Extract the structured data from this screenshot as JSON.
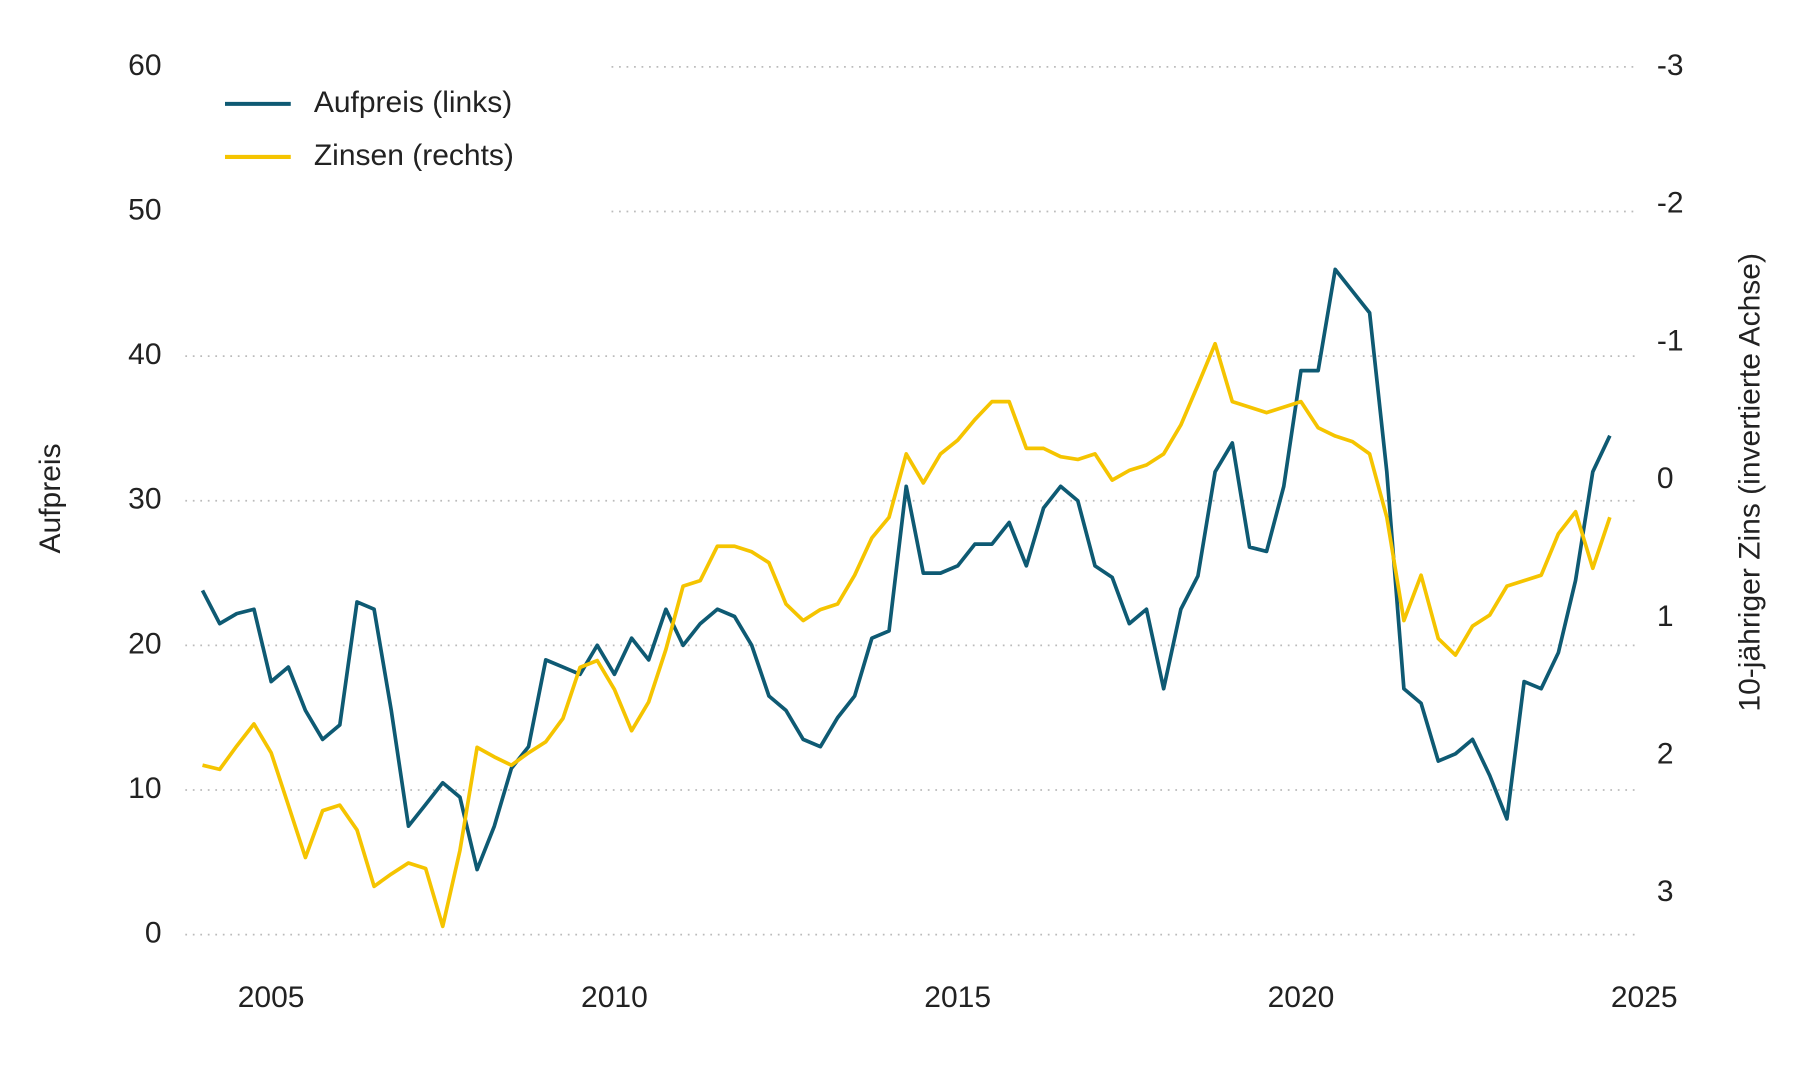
{
  "chart_data": {
    "type": "line",
    "ylabel": "Aufpreis",
    "y2label": "10-jähriger Zins (invertierte Achse)",
    "xlim": [
      2003.75,
      2025
    ],
    "xticks": [
      2005,
      2010,
      2015,
      2020,
      2025
    ],
    "ylim": [
      0,
      60
    ],
    "yticks": [
      0,
      10,
      20,
      30,
      40,
      50,
      60
    ],
    "y2lim": [
      3.3,
      -3
    ],
    "y2ticks": [
      3,
      2,
      1,
      0,
      -1,
      -2,
      -3
    ],
    "grid": true,
    "legend": "upper left",
    "x": [
      2004.0,
      2004.25,
      2004.5,
      2004.75,
      2005.0,
      2005.25,
      2005.5,
      2005.75,
      2006.0,
      2006.25,
      2006.5,
      2006.75,
      2007.0,
      2007.25,
      2007.5,
      2007.75,
      2008.0,
      2008.25,
      2008.5,
      2008.75,
      2009.0,
      2009.25,
      2009.5,
      2009.75,
      2010.0,
      2010.25,
      2010.5,
      2010.75,
      2011.0,
      2011.25,
      2011.5,
      2011.75,
      2012.0,
      2012.25,
      2012.5,
      2012.75,
      2013.0,
      2013.25,
      2013.5,
      2013.75,
      2014.0,
      2014.25,
      2014.5,
      2014.75,
      2015.0,
      2015.25,
      2015.5,
      2015.75,
      2016.0,
      2016.25,
      2016.5,
      2016.75,
      2017.0,
      2017.25,
      2017.5,
      2017.75,
      2018.0,
      2018.25,
      2018.5,
      2018.75,
      2019.0,
      2019.25,
      2019.5,
      2019.75,
      2020.0,
      2020.25,
      2020.5,
      2020.75,
      2021.0,
      2021.25,
      2021.5,
      2021.75,
      2022.0,
      2022.25,
      2022.5,
      2022.75,
      2023.0,
      2023.25,
      2023.5,
      2023.75,
      2024.0,
      2024.25,
      2024.5
    ],
    "series": [
      {
        "name": "Aufpreis (links)",
        "color": "#0e5a73",
        "axis": "y",
        "values": [
          23.8,
          21.5,
          22.2,
          22.5,
          17.5,
          18.5,
          15.5,
          13.5,
          14.5,
          23,
          22.5,
          15.5,
          7.5,
          9,
          10.5,
          9.5,
          4.5,
          7.5,
          11.5,
          13,
          19,
          18.5,
          18,
          20,
          18,
          20.5,
          19,
          22.5,
          20,
          21.5,
          22.5,
          22,
          20,
          16.5,
          15.5,
          13.5,
          13,
          15,
          16.5,
          20.5,
          21,
          31,
          25,
          25,
          25.5,
          27,
          27,
          28.5,
          25.5,
          29.5,
          31,
          30,
          25.5,
          24.7,
          21.5,
          22.5,
          17,
          22.5,
          24.8,
          32,
          34,
          26.8,
          26.5,
          31,
          39,
          39,
          46,
          44.5,
          43,
          32,
          17,
          16,
          12,
          12.5,
          13.5,
          11,
          8,
          17.5,
          17,
          19.5,
          24.5,
          32,
          34.5
        ]
      },
      {
        "name": "Zinsen (rechts)",
        "color": "#f5c400",
        "axis": "y2",
        "values": [
          2.07,
          2.1,
          1.93,
          1.77,
          1.98,
          2.36,
          2.74,
          2.4,
          2.36,
          2.54,
          2.95,
          2.86,
          2.78,
          2.82,
          3.24,
          2.69,
          1.94,
          2.01,
          2.07,
          1.98,
          1.9,
          1.73,
          1.36,
          1.31,
          1.52,
          1.82,
          1.61,
          1.23,
          0.77,
          0.73,
          0.48,
          0.48,
          0.52,
          0.6,
          0.9,
          1.02,
          0.94,
          0.9,
          0.69,
          0.42,
          0.27,
          -0.19,
          0.02,
          -0.19,
          -0.29,
          -0.44,
          -0.57,
          -0.57,
          -0.23,
          -0.23,
          -0.17,
          -0.15,
          -0.19,
          0,
          -0.07,
          -0.11,
          -0.19,
          -0.4,
          -0.69,
          -0.99,
          -0.57,
          -0.53,
          -0.49,
          -0.53,
          -0.57,
          -0.38,
          -0.32,
          -0.28,
          -0.19,
          0.27,
          1.02,
          0.69,
          1.15,
          1.27,
          1.06,
          0.98,
          0.77,
          0.73,
          0.69,
          0.39,
          0.23,
          0.64,
          0.27
        ]
      }
    ]
  }
}
